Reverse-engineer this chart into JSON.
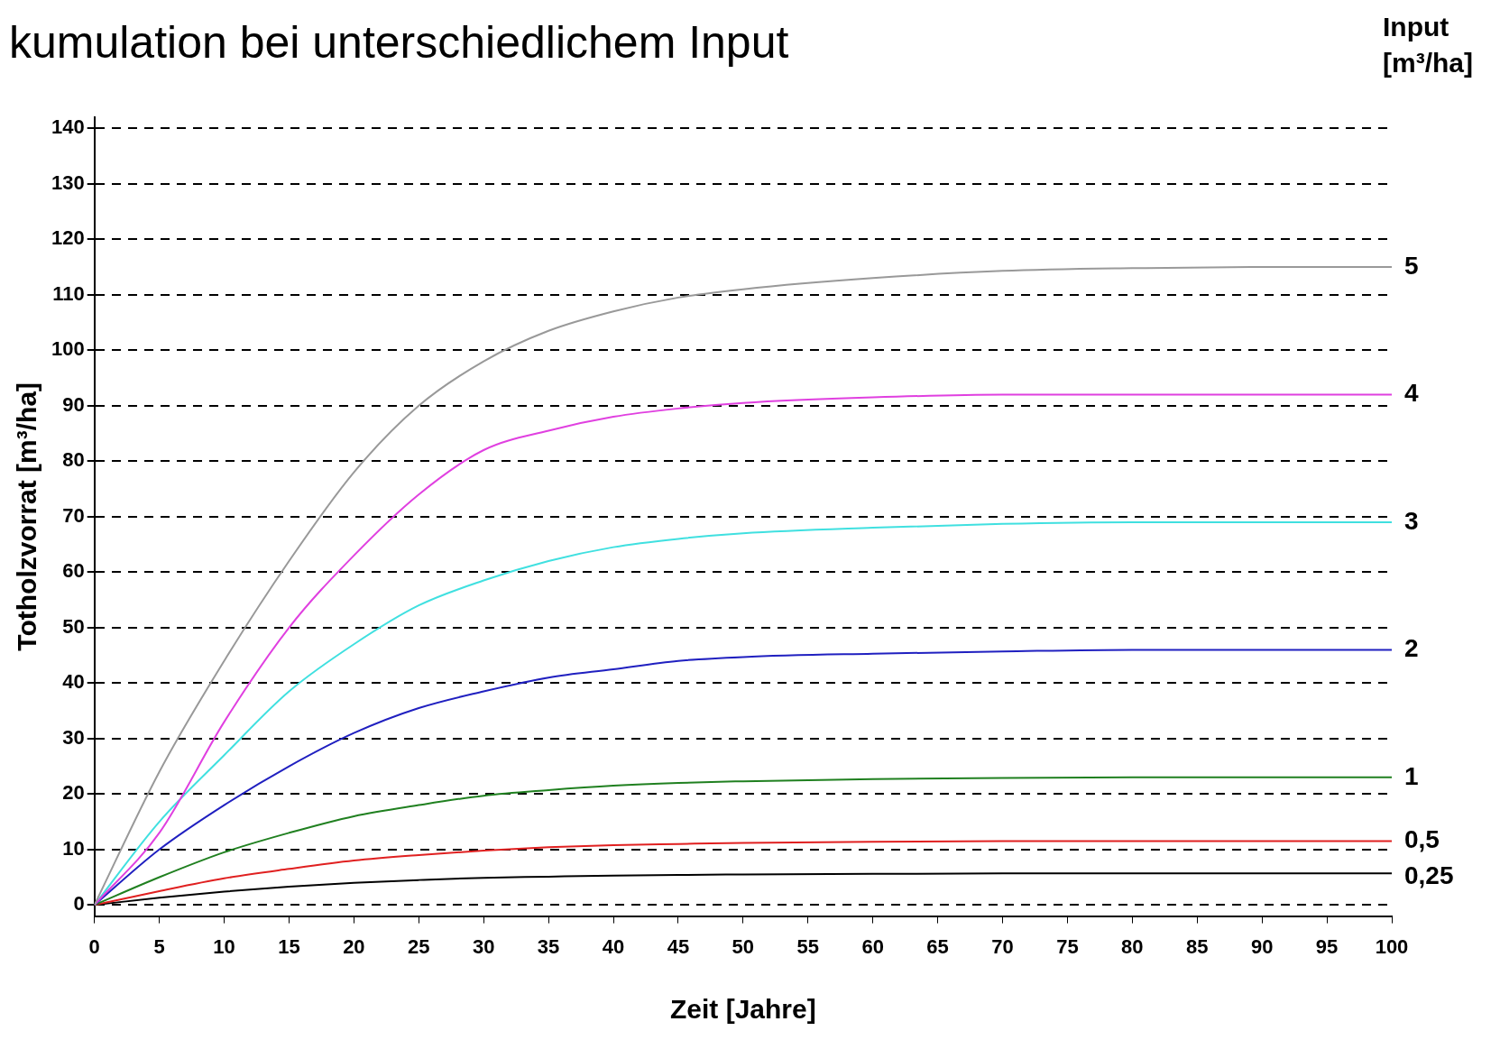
{
  "chart_data": {
    "type": "line",
    "title": "kumulation bei unterschiedlichem Input",
    "xlabel": "Zeit [Jahre]",
    "ylabel": "Totholzvorrat [m³/ha]",
    "legend_title": "Input [m³/ha]",
    "x": [
      0,
      5,
      10,
      15,
      20,
      25,
      30,
      35,
      40,
      45,
      50,
      60,
      70,
      80,
      90,
      100
    ],
    "series": [
      {
        "name": "5",
        "color": "#999999",
        "values": [
          0,
          24,
          44,
          62,
          78,
          90,
          98,
          103.5,
          107,
          109.5,
          111,
          113,
          114.3,
          114.8,
          115,
          115
        ]
      },
      {
        "name": "4",
        "color": "#e040e0",
        "values": [
          0,
          13,
          33,
          50,
          63,
          74,
          82,
          85.5,
          88,
          89.5,
          90.5,
          91.5,
          92,
          92,
          92,
          92
        ]
      },
      {
        "name": "3",
        "color": "#40e0e0",
        "values": [
          0,
          15,
          27,
          38.5,
          47,
          54,
          58.5,
          62,
          64.5,
          66,
          67,
          68,
          68.7,
          69,
          69,
          69
        ]
      },
      {
        "name": "2",
        "color": "#2020c0",
        "values": [
          0,
          10,
          18,
          25,
          31,
          35.5,
          38.5,
          41,
          42.5,
          44,
          44.7,
          45.3,
          45.7,
          46,
          46,
          46
        ]
      },
      {
        "name": "1",
        "color": "#208020",
        "values": [
          0,
          5,
          9.5,
          13,
          16,
          18,
          19.7,
          20.7,
          21.5,
          22,
          22.3,
          22.7,
          22.9,
          23,
          23,
          23
        ]
      },
      {
        "name": "0,5",
        "color": "#e02020",
        "values": [
          0,
          2.5,
          4.8,
          6.5,
          8,
          9,
          9.8,
          10.4,
          10.8,
          11,
          11.2,
          11.4,
          11.5,
          11.5,
          11.5,
          11.5
        ]
      },
      {
        "name": "0,25",
        "color": "#000000",
        "values": [
          0,
          1.3,
          2.4,
          3.3,
          4,
          4.5,
          4.9,
          5.1,
          5.3,
          5.4,
          5.5,
          5.6,
          5.7,
          5.7,
          5.7,
          5.7
        ]
      }
    ],
    "xlim": [
      0,
      100
    ],
    "ylim": [
      -2,
      142
    ],
    "xticks": [
      0,
      5,
      10,
      15,
      20,
      25,
      30,
      35,
      40,
      45,
      50,
      55,
      60,
      65,
      70,
      75,
      80,
      85,
      90,
      95,
      100
    ],
    "yticks": [
      0,
      10,
      20,
      30,
      40,
      50,
      60,
      70,
      80,
      90,
      100,
      110,
      120,
      130,
      140
    ],
    "grid": "y",
    "line_style": "solid",
    "marker": "none"
  }
}
